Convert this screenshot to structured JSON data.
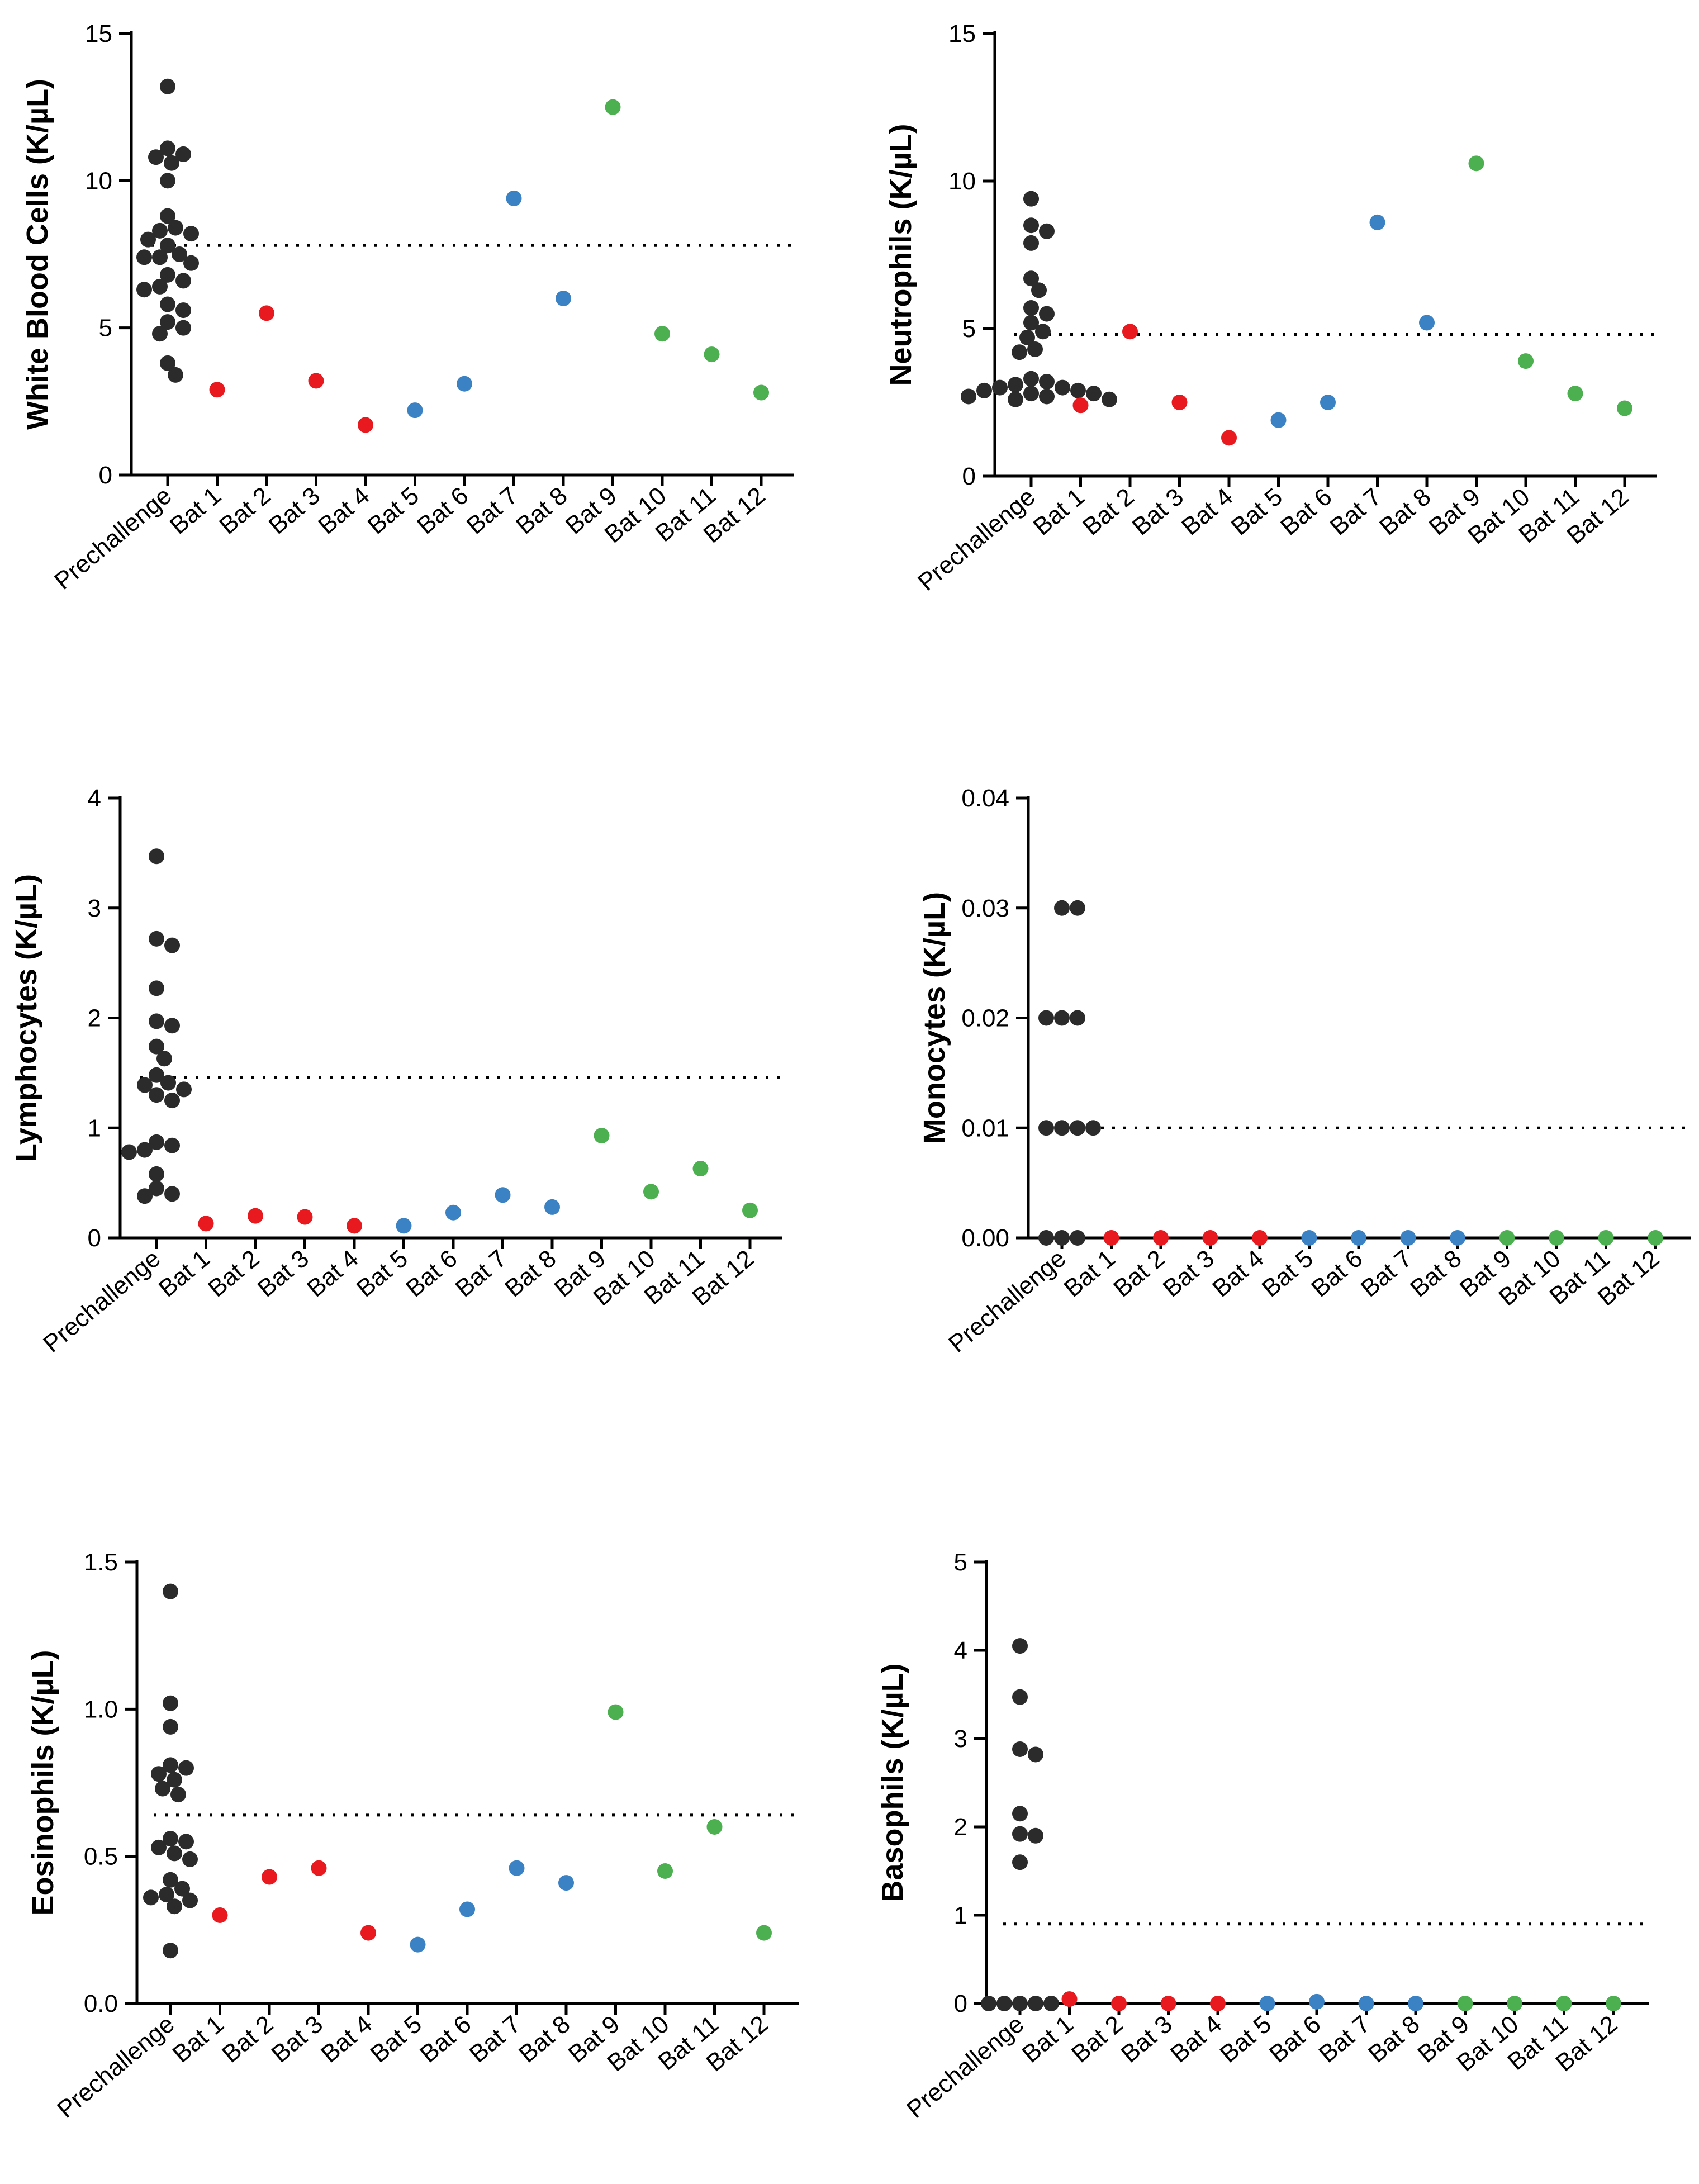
{
  "colors": {
    "prechallenge": "#2b2b2b",
    "red": "#e8191f",
    "blue": "#3b82c4",
    "green": "#4caf50"
  },
  "chart_data": [
    {
      "type": "scatter",
      "panel": "top-left",
      "ylabel": "White Blood Cells (K/µL)",
      "ylim": [
        0,
        15
      ],
      "yticks": [
        0,
        5,
        10,
        15
      ],
      "categories": [
        "Prechallenge",
        "Bat 1",
        "Bat 2",
        "Bat 3",
        "Bat 4",
        "Bat 5",
        "Bat 6",
        "Bat 7",
        "Bat 8",
        "Bat 9",
        "Bat 10",
        "Bat 11",
        "Bat 12"
      ],
      "reference_line": 7.8,
      "prechallenge_values": [
        13.2,
        11.1,
        10.9,
        10.8,
        10.6,
        10.0,
        8.8,
        8.4,
        8.3,
        8.2,
        8.0,
        7.8,
        7.5,
        7.4,
        7.4,
        7.2,
        6.8,
        6.6,
        6.4,
        6.3,
        5.8,
        5.6,
        5.2,
        5.0,
        4.8,
        3.8,
        3.4
      ],
      "bat_values": [
        2.9,
        5.5,
        3.2,
        1.7,
        2.2,
        3.1,
        9.4,
        6.0,
        12.5,
        4.8,
        4.1,
        2.8
      ],
      "bat_groups": [
        "red",
        "red",
        "red",
        "red",
        "blue",
        "blue",
        "blue",
        "blue",
        "green",
        "green",
        "green",
        "green"
      ]
    },
    {
      "type": "scatter",
      "panel": "top-right",
      "ylabel": "Neutrophils (K/µL)",
      "ylim": [
        0,
        15
      ],
      "yticks": [
        0,
        5,
        10,
        15
      ],
      "categories": [
        "Prechallenge",
        "Bat 1",
        "Bat 2",
        "Bat 3",
        "Bat 4",
        "Bat 5",
        "Bat 6",
        "Bat 7",
        "Bat 8",
        "Bat 9",
        "Bat 10",
        "Bat 11",
        "Bat 12"
      ],
      "reference_line": 4.8,
      "prechallenge_values": [
        9.4,
        8.5,
        8.3,
        7.9,
        6.7,
        6.3,
        5.7,
        5.5,
        5.2,
        4.9,
        4.7,
        4.3,
        4.2,
        3.3,
        3.2,
        3.1,
        3.0,
        3.0,
        2.9,
        2.9,
        2.8,
        2.8,
        2.7,
        2.7,
        2.6,
        2.6
      ],
      "bat_values": [
        2.4,
        4.9,
        2.5,
        1.3,
        1.9,
        2.5,
        8.6,
        5.2,
        10.6,
        3.9,
        2.8,
        2.3
      ],
      "bat_groups": [
        "red",
        "red",
        "red",
        "red",
        "blue",
        "blue",
        "blue",
        "blue",
        "green",
        "green",
        "green",
        "green"
      ]
    },
    {
      "type": "scatter",
      "panel": "middle-left",
      "ylabel": "Lymphocytes (K/µL)",
      "ylim": [
        0,
        4
      ],
      "yticks": [
        0,
        1,
        2,
        3,
        4
      ],
      "categories": [
        "Prechallenge",
        "Bat 1",
        "Bat 2",
        "Bat 3",
        "Bat 4",
        "Bat 5",
        "Bat 6",
        "Bat 7",
        "Bat 8",
        "Bat 9",
        "Bat 10",
        "Bat 11",
        "Bat 12"
      ],
      "reference_line": 1.46,
      "prechallenge_values": [
        3.47,
        2.72,
        2.66,
        2.27,
        1.97,
        1.93,
        1.74,
        1.63,
        1.48,
        1.41,
        1.39,
        1.35,
        1.3,
        1.25,
        0.87,
        0.84,
        0.8,
        0.78,
        0.58,
        0.45,
        0.4,
        0.38
      ],
      "bat_values": [
        0.13,
        0.2,
        0.19,
        0.11,
        0.11,
        0.23,
        0.39,
        0.28,
        0.93,
        0.42,
        0.63,
        0.25
      ],
      "bat_groups": [
        "red",
        "red",
        "red",
        "red",
        "blue",
        "blue",
        "blue",
        "blue",
        "green",
        "green",
        "green",
        "green"
      ]
    },
    {
      "type": "scatter",
      "panel": "middle-right",
      "ylabel": "Monocytes (K/µL)",
      "ylim": [
        0,
        0.04
      ],
      "yticks": [
        0.0,
        0.01,
        0.02,
        0.03,
        0.04
      ],
      "ytick_labels": [
        "0.00",
        "0.01",
        "0.02",
        "0.03",
        "0.04"
      ],
      "categories": [
        "Prechallenge",
        "Bat 1",
        "Bat 2",
        "Bat 3",
        "Bat 4",
        "Bat 5",
        "Bat 6",
        "Bat 7",
        "Bat 8",
        "Bat 9",
        "Bat 10",
        "Bat 11",
        "Bat 12"
      ],
      "reference_line": 0.01,
      "prechallenge_values": [
        0.03,
        0.03,
        0.02,
        0.02,
        0.02,
        0.01,
        0.01,
        0.01,
        0.01,
        0.0,
        0.0,
        0.0
      ],
      "bat_values": [
        0.0,
        0.0,
        0.0,
        0.0,
        0.0,
        0.0,
        0.0,
        0.0,
        0.0,
        0.0,
        0.0,
        0.0
      ],
      "bat_groups": [
        "red",
        "red",
        "red",
        "red",
        "blue",
        "blue",
        "blue",
        "blue",
        "green",
        "green",
        "green",
        "green"
      ]
    },
    {
      "type": "scatter",
      "panel": "bottom-left",
      "ylabel": "Eosinophils (K/µL)",
      "ylim": [
        0,
        1.5
      ],
      "yticks": [
        0.0,
        0.5,
        1.0,
        1.5
      ],
      "ytick_labels": [
        "0.0",
        "0.5",
        "1.0",
        "1.5"
      ],
      "categories": [
        "Prechallenge",
        "Bat 1",
        "Bat 2",
        "Bat 3",
        "Bat 4",
        "Bat 5",
        "Bat 6",
        "Bat 7",
        "Bat 8",
        "Bat 9",
        "Bat 10",
        "Bat 11",
        "Bat 12"
      ],
      "reference_line": 0.64,
      "prechallenge_values": [
        1.4,
        1.02,
        0.94,
        0.81,
        0.8,
        0.78,
        0.76,
        0.73,
        0.71,
        0.56,
        0.55,
        0.53,
        0.51,
        0.49,
        0.42,
        0.39,
        0.37,
        0.36,
        0.35,
        0.33,
        0.18
      ],
      "bat_values": [
        0.3,
        0.43,
        0.46,
        0.24,
        0.2,
        0.32,
        0.46,
        0.41,
        0.99,
        0.45,
        0.6,
        0.24
      ],
      "bat_groups": [
        "red",
        "red",
        "red",
        "red",
        "blue",
        "blue",
        "blue",
        "blue",
        "green",
        "green",
        "green",
        "green"
      ]
    },
    {
      "type": "scatter",
      "panel": "bottom-right",
      "ylabel": "Basophils (K/µL)",
      "ylim": [
        0,
        5
      ],
      "yticks": [
        0,
        1,
        2,
        3,
        4,
        5
      ],
      "categories": [
        "Prechallenge",
        "Bat 1",
        "Bat 2",
        "Bat 3",
        "Bat 4",
        "Bat 5",
        "Bat 6",
        "Bat 7",
        "Bat 8",
        "Bat 9",
        "Bat 10",
        "Bat 11",
        "Bat 12"
      ],
      "reference_line": 0.9,
      "prechallenge_values": [
        4.05,
        3.47,
        2.88,
        2.82,
        2.15,
        1.92,
        1.9,
        1.6,
        0.0,
        0.0,
        0.0,
        0.0,
        0.0
      ],
      "bat_values": [
        0.05,
        0.0,
        0.0,
        0.0,
        0.0,
        0.02,
        0.0,
        0.0,
        0.0,
        0.0,
        0.0,
        0.0
      ],
      "bat_groups": [
        "red",
        "red",
        "red",
        "red",
        "blue",
        "blue",
        "blue",
        "blue",
        "green",
        "green",
        "green",
        "green"
      ]
    }
  ]
}
